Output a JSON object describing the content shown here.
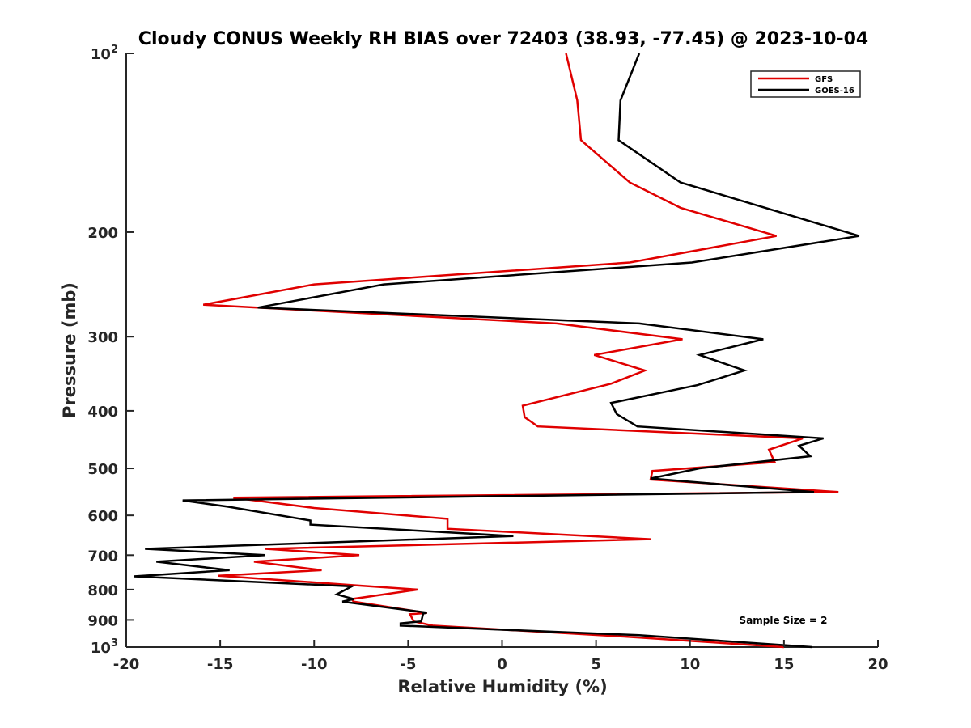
{
  "chart_data": {
    "type": "line",
    "title": "Cloudy CONUS Weekly RH BIAS over 72403 (38.93, -77.45) @ 2023-10-04",
    "xlabel": "Relative Humidity (%)",
    "ylabel": "Pressure (mb)",
    "xlim": [
      -20,
      20
    ],
    "ylim": [
      100,
      1000
    ],
    "y_scale": "log",
    "y_direction": "reversed",
    "grid": false,
    "legend_position": "top-right",
    "x_ticks": [
      -20,
      -15,
      -10,
      -5,
      0,
      5,
      10,
      15,
      20
    ],
    "x_tick_labels": [
      "-20",
      "-15",
      "-10",
      "-5",
      "0",
      "5",
      "10",
      "15",
      "20"
    ],
    "y_ticks": [
      100,
      200,
      300,
      400,
      500,
      600,
      700,
      800,
      900,
      1000
    ],
    "y_tick_labels": [
      {
        "base": "10",
        "exp": "2"
      },
      {
        "base": "200",
        "exp": ""
      },
      {
        "base": "300",
        "exp": ""
      },
      {
        "base": "400",
        "exp": ""
      },
      {
        "base": "500",
        "exp": ""
      },
      {
        "base": "600",
        "exp": ""
      },
      {
        "base": "700",
        "exp": ""
      },
      {
        "base": "800",
        "exp": ""
      },
      {
        "base": "900",
        "exp": ""
      },
      {
        "base": "10",
        "exp": "3"
      }
    ],
    "series": [
      {
        "name": "GFS",
        "color": "#e00000",
        "points": [
          [
            3.4,
            100
          ],
          [
            4.0,
            120
          ],
          [
            4.2,
            140
          ],
          [
            6.8,
            165
          ],
          [
            9.5,
            182
          ],
          [
            14.6,
            203
          ],
          [
            6.8,
            225
          ],
          [
            -10.0,
            245
          ],
          [
            -15.9,
            265
          ],
          [
            2.9,
            285
          ],
          [
            9.6,
            303
          ],
          [
            4.9,
            322
          ],
          [
            7.6,
            342
          ],
          [
            5.8,
            360
          ],
          [
            1.1,
            392
          ],
          [
            1.2,
            410
          ],
          [
            1.9,
            425
          ],
          [
            16.0,
            445
          ],
          [
            14.2,
            465
          ],
          [
            14.5,
            488
          ],
          [
            8.0,
            505
          ],
          [
            7.9,
            522
          ],
          [
            17.9,
            548
          ],
          [
            -14.3,
            560
          ],
          [
            -10.0,
            583
          ],
          [
            -2.9,
            608
          ],
          [
            -2.9,
            632
          ],
          [
            7.9,
            658
          ],
          [
            -12.6,
            683
          ],
          [
            -7.6,
            700
          ],
          [
            -13.2,
            718
          ],
          [
            -9.6,
            742
          ],
          [
            -15.1,
            758
          ],
          [
            -7.5,
            788
          ],
          [
            -4.5,
            800
          ],
          [
            -8.0,
            830
          ],
          [
            -7.9,
            838
          ],
          [
            -4.0,
            876
          ],
          [
            -4.9,
            880
          ],
          [
            -4.7,
            905
          ],
          [
            -3.7,
            920
          ],
          [
            6.5,
            960
          ],
          [
            15.0,
            1000
          ]
        ]
      },
      {
        "name": "GOES-16",
        "color": "#000000",
        "points": [
          [
            7.3,
            100
          ],
          [
            6.3,
            120
          ],
          [
            6.2,
            140
          ],
          [
            9.5,
            165
          ],
          [
            13.5,
            180
          ],
          [
            19.0,
            203
          ],
          [
            10.1,
            225
          ],
          [
            -6.3,
            245
          ],
          [
            -13.0,
            268
          ],
          [
            7.3,
            285
          ],
          [
            13.9,
            303
          ],
          [
            10.5,
            322
          ],
          [
            12.9,
            342
          ],
          [
            10.4,
            362
          ],
          [
            5.8,
            388
          ],
          [
            6.1,
            405
          ],
          [
            7.2,
            425
          ],
          [
            17.1,
            445
          ],
          [
            15.8,
            458
          ],
          [
            16.4,
            477
          ],
          [
            10.5,
            500
          ],
          [
            7.9,
            520
          ],
          [
            16.6,
            548
          ],
          [
            -17.0,
            566
          ],
          [
            -14.6,
            580
          ],
          [
            -10.2,
            612
          ],
          [
            -10.2,
            622
          ],
          [
            0.6,
            650
          ],
          [
            -19.0,
            683
          ],
          [
            -12.6,
            700
          ],
          [
            -18.4,
            718
          ],
          [
            -14.5,
            742
          ],
          [
            -19.6,
            760
          ],
          [
            -8.0,
            790
          ],
          [
            -8.8,
            815
          ],
          [
            -7.9,
            830
          ],
          [
            -8.5,
            838
          ],
          [
            -4.0,
            875
          ],
          [
            -4.2,
            878
          ],
          [
            -4.3,
            905
          ],
          [
            -5.4,
            912
          ],
          [
            -5.4,
            920
          ],
          [
            7.3,
            955
          ],
          [
            16.5,
            1000
          ]
        ]
      }
    ],
    "annotation": "Sample Size = 2"
  }
}
